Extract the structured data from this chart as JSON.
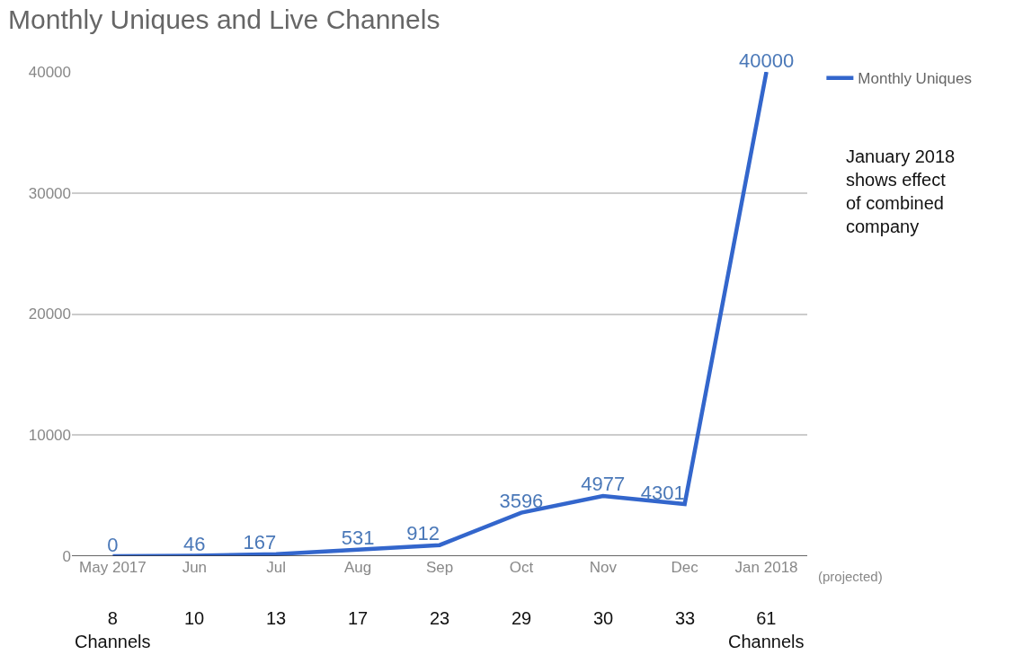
{
  "chart_data": {
    "type": "line",
    "title": "Monthly Uniques and Live Channels",
    "categories": [
      "May 2017",
      "Jun",
      "Jul",
      "Aug",
      "Sep",
      "Oct",
      "Nov",
      "Dec",
      "Jan 2018"
    ],
    "series": [
      {
        "name": "Monthly Uniques",
        "color": "#3366cc",
        "values": [
          0,
          46,
          167,
          531,
          912,
          3596,
          4977,
          4301,
          40000
        ]
      }
    ],
    "data_labels": true,
    "ylim": [
      0,
      40000
    ],
    "yticks": [
      0,
      10000,
      20000,
      30000,
      40000
    ],
    "grid": "y",
    "legend": "top right",
    "annotations": [
      "(projected)",
      "January 2018 shows effect of combined company",
      "8 Channels",
      "10",
      "13",
      "17",
      "23",
      "29",
      "30",
      "33",
      "61 Channels"
    ]
  }
}
